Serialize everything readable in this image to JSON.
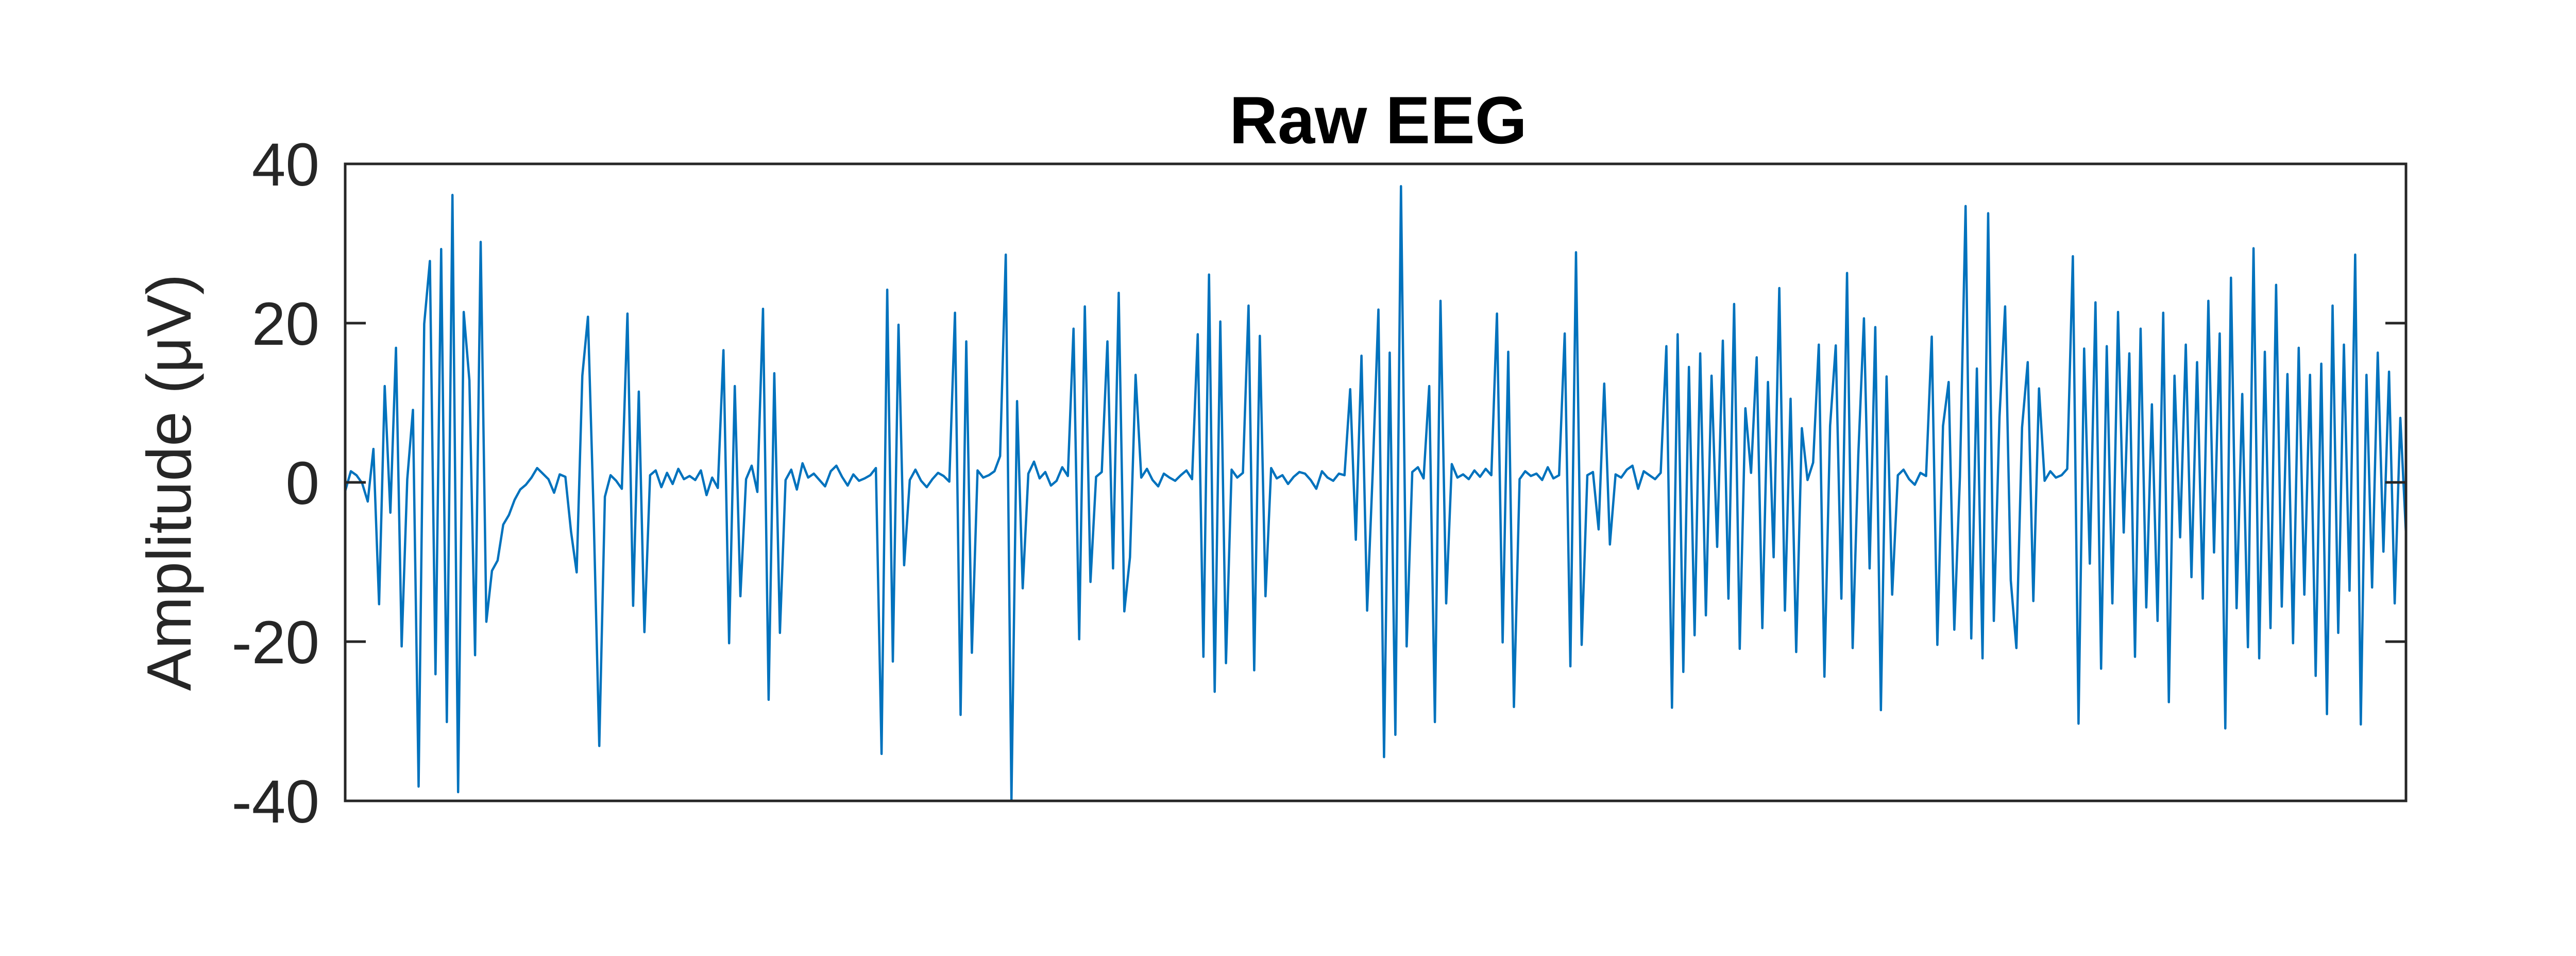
{
  "chart_data": {
    "type": "line",
    "title": "Raw EEG",
    "xlabel": "",
    "ylabel": "Amplitude (μV)",
    "ylim": [
      -40,
      40
    ],
    "yticks": [
      40,
      20,
      0,
      -20,
      -40
    ],
    "xlim": [
      0,
      1
    ],
    "x_ticks_shown": false,
    "grid": false,
    "series_color": "#0072BD",
    "series": [
      {
        "values": [
          -1.1,
          1.4,
          0.9,
          -0.1,
          -2.4,
          4.2,
          -15.3,
          12.1,
          -3.8,
          16.9,
          -20.6,
          0.4,
          9.1,
          -38.2,
          19.9,
          27.8,
          -24.1,
          29.3,
          -30.1,
          36.1,
          -38.9,
          21.4,
          12.8,
          -21.7,
          30.2,
          -17.5,
          -11.1,
          -9.8,
          -5.3,
          -4.1,
          -2.2,
          -0.9,
          -0.3,
          0.6,
          1.8,
          1.1,
          0.4,
          -1.3,
          1.0,
          0.7,
          -6.2,
          -11.3,
          13.4,
          20.8,
          -3.9,
          -33.1,
          -1.8,
          0.9,
          0.2,
          -0.8,
          21.2,
          -15.5,
          11.4,
          -18.8,
          0.9,
          1.5,
          -0.6,
          1.2,
          -0.2,
          1.7,
          0.4,
          0.8,
          0.3,
          1.5,
          -1.6,
          0.6,
          -0.7,
          16.6,
          -20.2,
          12.1,
          -14.3,
          0.4,
          2.1,
          -1.2,
          21.8,
          -27.3,
          13.7,
          -18.9,
          0.3,
          1.6,
          -0.9,
          2.4,
          0.6,
          1.1,
          0.3,
          -0.5,
          1.4,
          2.1,
          0.7,
          -0.4,
          1.0,
          0.2,
          0.5,
          0.9,
          1.8,
          -34.1,
          24.2,
          -22.5,
          19.8,
          -10.4,
          0.3,
          1.6,
          0.2,
          -0.6,
          0.4,
          1.2,
          0.8,
          0.1,
          21.3,
          -29.2,
          17.7,
          -21.4,
          1.5,
          0.6,
          0.9,
          1.4,
          3.3,
          28.6,
          -40.0,
          10.2,
          -13.3,
          1.1,
          2.6,
          0.5,
          1.3,
          -0.4,
          0.2,
          1.9,
          0.8,
          19.3,
          -19.7,
          22.1,
          -12.5,
          0.7,
          1.3,
          17.7,
          -10.8,
          23.8,
          -16.2,
          -9.4,
          13.5,
          0.6,
          1.7,
          0.3,
          -0.5,
          1.1,
          0.6,
          0.2,
          0.9,
          1.5,
          0.4,
          18.6,
          -21.9,
          26.1,
          -26.3,
          20.2,
          -22.7,
          1.6,
          0.6,
          1.2,
          22.2,
          -23.6,
          18.4,
          -14.3,
          1.8,
          0.5,
          0.9,
          -0.2,
          0.7,
          1.3,
          1.1,
          0.3,
          -0.8,
          1.4,
          0.6,
          0.2,
          1.1,
          0.9,
          11.7,
          -7.2,
          15.9,
          -16.1,
          1.4,
          21.7,
          -34.5,
          16.3,
          -31.7,
          37.2,
          -20.6,
          1.3,
          1.9,
          0.5,
          12.1,
          -30.1,
          22.8,
          -15.2,
          2.3,
          0.6,
          1.0,
          0.4,
          1.5,
          0.7,
          1.7,
          0.9,
          21.2,
          -20.1,
          16.4,
          -28.2,
          0.4,
          1.4,
          0.8,
          1.1,
          0.3,
          1.9,
          0.5,
          0.9,
          18.7,
          -23.1,
          28.9,
          -20.4,
          0.9,
          1.3,
          -5.9,
          12.4,
          -7.8,
          1.0,
          0.6,
          1.6,
          2.1,
          -0.8,
          1.4,
          0.9,
          0.4,
          1.2,
          17.1,
          -28.3,
          18.6,
          -23.8,
          14.5,
          -19.2,
          16.2,
          -16.7,
          13.4,
          -8.1,
          17.8,
          -14.6,
          22.4,
          -20.9,
          9.3,
          1.2,
          15.7,
          -18.3,
          12.6,
          -9.4,
          24.4,
          -16.1,
          10.5,
          -21.3,
          6.8,
          0.3,
          2.5,
          17.3,
          -24.4,
          7.1,
          17.2,
          -14.6,
          26.3,
          -20.8,
          3.5,
          20.6,
          -10.8,
          19.5,
          -28.6,
          13.3,
          -14.1,
          0.9,
          1.6,
          0.4,
          -0.3,
          1.2,
          0.8,
          18.3,
          -20.4,
          7.1,
          12.6,
          -18.5,
          0.7,
          34.7,
          -19.6,
          14.3,
          -22.1,
          33.8,
          -17.4,
          8.2,
          22.1,
          -12.3,
          -20.8,
          6.9,
          15.1,
          -14.9,
          11.8,
          0.2,
          1.4,
          0.6,
          0.9,
          1.7,
          28.4,
          -30.3,
          16.8,
          -10.2,
          22.6,
          -23.4,
          17.1,
          -15.2,
          21.4,
          -6.3,
          16.2,
          -21.9,
          19.3,
          -15.7,
          9.8,
          -17.4,
          21.3,
          -27.6,
          13.4,
          -6.9,
          17.3,
          -11.9,
          15.1,
          -14.6,
          22.8,
          -8.8,
          18.7,
          -30.9,
          25.7,
          -15.8,
          11.1,
          -20.7,
          29.4,
          -22.1,
          16.4,
          -18.3,
          24.8,
          -15.6,
          13.6,
          -20.2,
          16.9,
          -14.1,
          13.5,
          -24.3,
          14.9,
          -29.1,
          22.2,
          -18.9,
          17.3,
          -13.6,
          28.6,
          -30.4,
          13.5,
          -13.2,
          16.3,
          -8.7,
          13.9,
          -15.2,
          8.1,
          -6.5
        ]
      }
    ]
  }
}
